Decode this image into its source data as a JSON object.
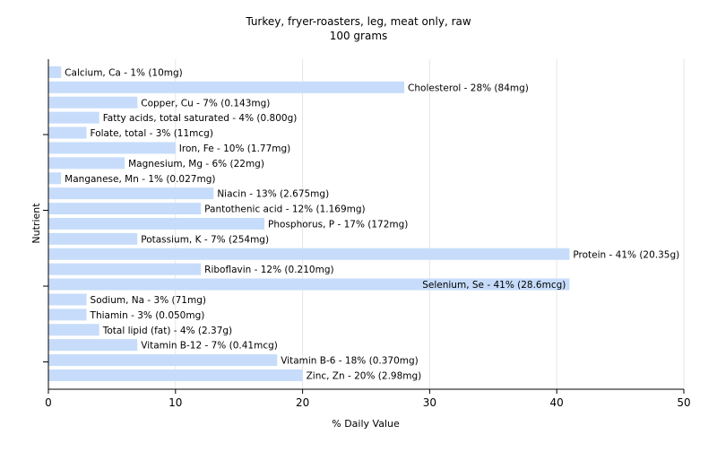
{
  "chart_data": {
    "type": "bar",
    "orientation": "horizontal",
    "title": "Turkey, fryer-roasters, leg, meat only, raw",
    "subtitle": "100 grams",
    "xlabel": "% Daily Value",
    "ylabel": "Nutrient",
    "xlim": [
      0,
      50
    ],
    "xticks": [
      0,
      10,
      20,
      30,
      40,
      50
    ],
    "grid": true,
    "bar_color": "#c6dcfa",
    "categories": [
      "Calcium, Ca",
      "Cholesterol",
      "Copper, Cu",
      "Fatty acids, total saturated",
      "Folate, total",
      "Iron, Fe",
      "Magnesium, Mg",
      "Manganese, Mn",
      "Niacin",
      "Pantothenic acid",
      "Phosphorus, P",
      "Potassium, K",
      "Protein",
      "Riboflavin",
      "Selenium, Se",
      "Sodium, Na",
      "Thiamin",
      "Total lipid (fat)",
      "Vitamin B-12",
      "Vitamin B-6",
      "Zinc, Zn"
    ],
    "values": [
      1,
      28,
      7,
      4,
      3,
      10,
      6,
      1,
      13,
      12,
      17,
      7,
      41,
      12,
      41,
      3,
      3,
      4,
      7,
      18,
      20
    ],
    "labels": [
      "Calcium, Ca - 1% (10mg)",
      "Cholesterol - 28% (84mg)",
      "Copper, Cu - 7% (0.143mg)",
      "Fatty acids, total saturated - 4% (0.800g)",
      "Folate, total - 3% (11mcg)",
      "Iron, Fe - 10% (1.77mg)",
      "Magnesium, Mg - 6% (22mg)",
      "Manganese, Mn - 1% (0.027mg)",
      "Niacin - 13% (2.675mg)",
      "Pantothenic acid - 12% (1.169mg)",
      "Phosphorus, P - 17% (172mg)",
      "Potassium, K - 7% (254mg)",
      "Protein - 41% (20.35g)",
      "Riboflavin - 12% (0.210mg)",
      "Selenium, Se - 41% (28.6mcg)",
      "Sodium, Na - 3% (71mg)",
      "Thiamin - 3% (0.050mg)",
      "Total lipid (fat) - 4% (2.37g)",
      "Vitamin B-12 - 7% (0.41mcg)",
      "Vitamin B-6 - 18% (0.370mg)",
      "Zinc, Zn - 20% (2.98mg)"
    ],
    "label_inside": [
      false,
      false,
      false,
      false,
      false,
      false,
      false,
      false,
      false,
      false,
      false,
      false,
      false,
      false,
      true,
      false,
      false,
      false,
      false,
      false,
      false
    ]
  }
}
